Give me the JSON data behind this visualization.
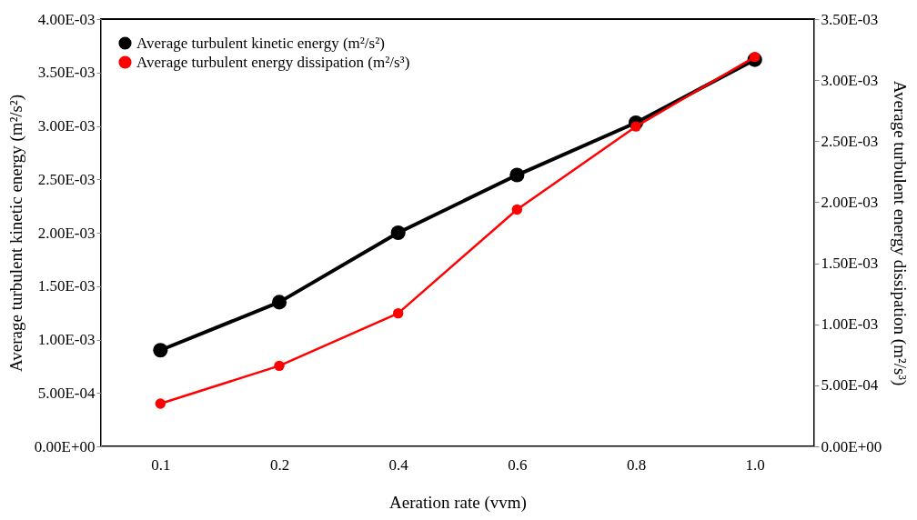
{
  "chart_data": {
    "type": "line",
    "xlabel": "Aeration rate (vvm)",
    "ylabel": "Average turbulent kinetic energy (m²/s²)",
    "y2label": "Average turbulent energy dissipation (m²/s³)",
    "categories": [
      "0.1",
      "0.2",
      "0.4",
      "0.6",
      "0.8",
      "1.0"
    ],
    "series": [
      {
        "name": "Average turbulent kinetic energy (m²/s²)",
        "color": "#000000",
        "values": [
          0.0009,
          0.00135,
          0.002,
          0.00254,
          0.00303,
          0.00362
        ]
      },
      {
        "name": "Average turbulent energy dissipation (m²/s³)",
        "color": "#ff0000",
        "axis": "y2",
        "values": [
          0.00035,
          0.00066,
          0.00109,
          0.00194,
          0.00262,
          0.00319
        ]
      }
    ],
    "ylim": [
      0,
      0.004
    ],
    "yticks": [
      {
        "value": 0,
        "label": "0.00E+00"
      },
      {
        "value": 0.0005,
        "label": "5.00E-04"
      },
      {
        "value": 0.001,
        "label": "1.00E-03"
      },
      {
        "value": 0.0015,
        "label": "1.50E-03"
      },
      {
        "value": 0.002,
        "label": "2.00E-03"
      },
      {
        "value": 0.0025,
        "label": "2.50E-03"
      },
      {
        "value": 0.003,
        "label": "3.00E-03"
      },
      {
        "value": 0.0035,
        "label": "3.50E-03"
      },
      {
        "value": 0.004,
        "label": "4.00E-03"
      }
    ],
    "y2lim": [
      0,
      0.0035
    ],
    "y2ticks": [
      {
        "value": 0,
        "label": "0.00E+00"
      },
      {
        "value": 0.0005,
        "label": "5.00E-04"
      },
      {
        "value": 0.001,
        "label": "1.00E-03"
      },
      {
        "value": 0.0015,
        "label": "1.50E-03"
      },
      {
        "value": 0.002,
        "label": "2.00E-03"
      },
      {
        "value": 0.0025,
        "label": "2.50E-03"
      },
      {
        "value": 0.003,
        "label": "3.00E-03"
      },
      {
        "value": 0.0035,
        "label": "3.50E-03"
      }
    ],
    "grid": false,
    "legend": "top left",
    "marker": "circle",
    "line_style": "solid"
  }
}
